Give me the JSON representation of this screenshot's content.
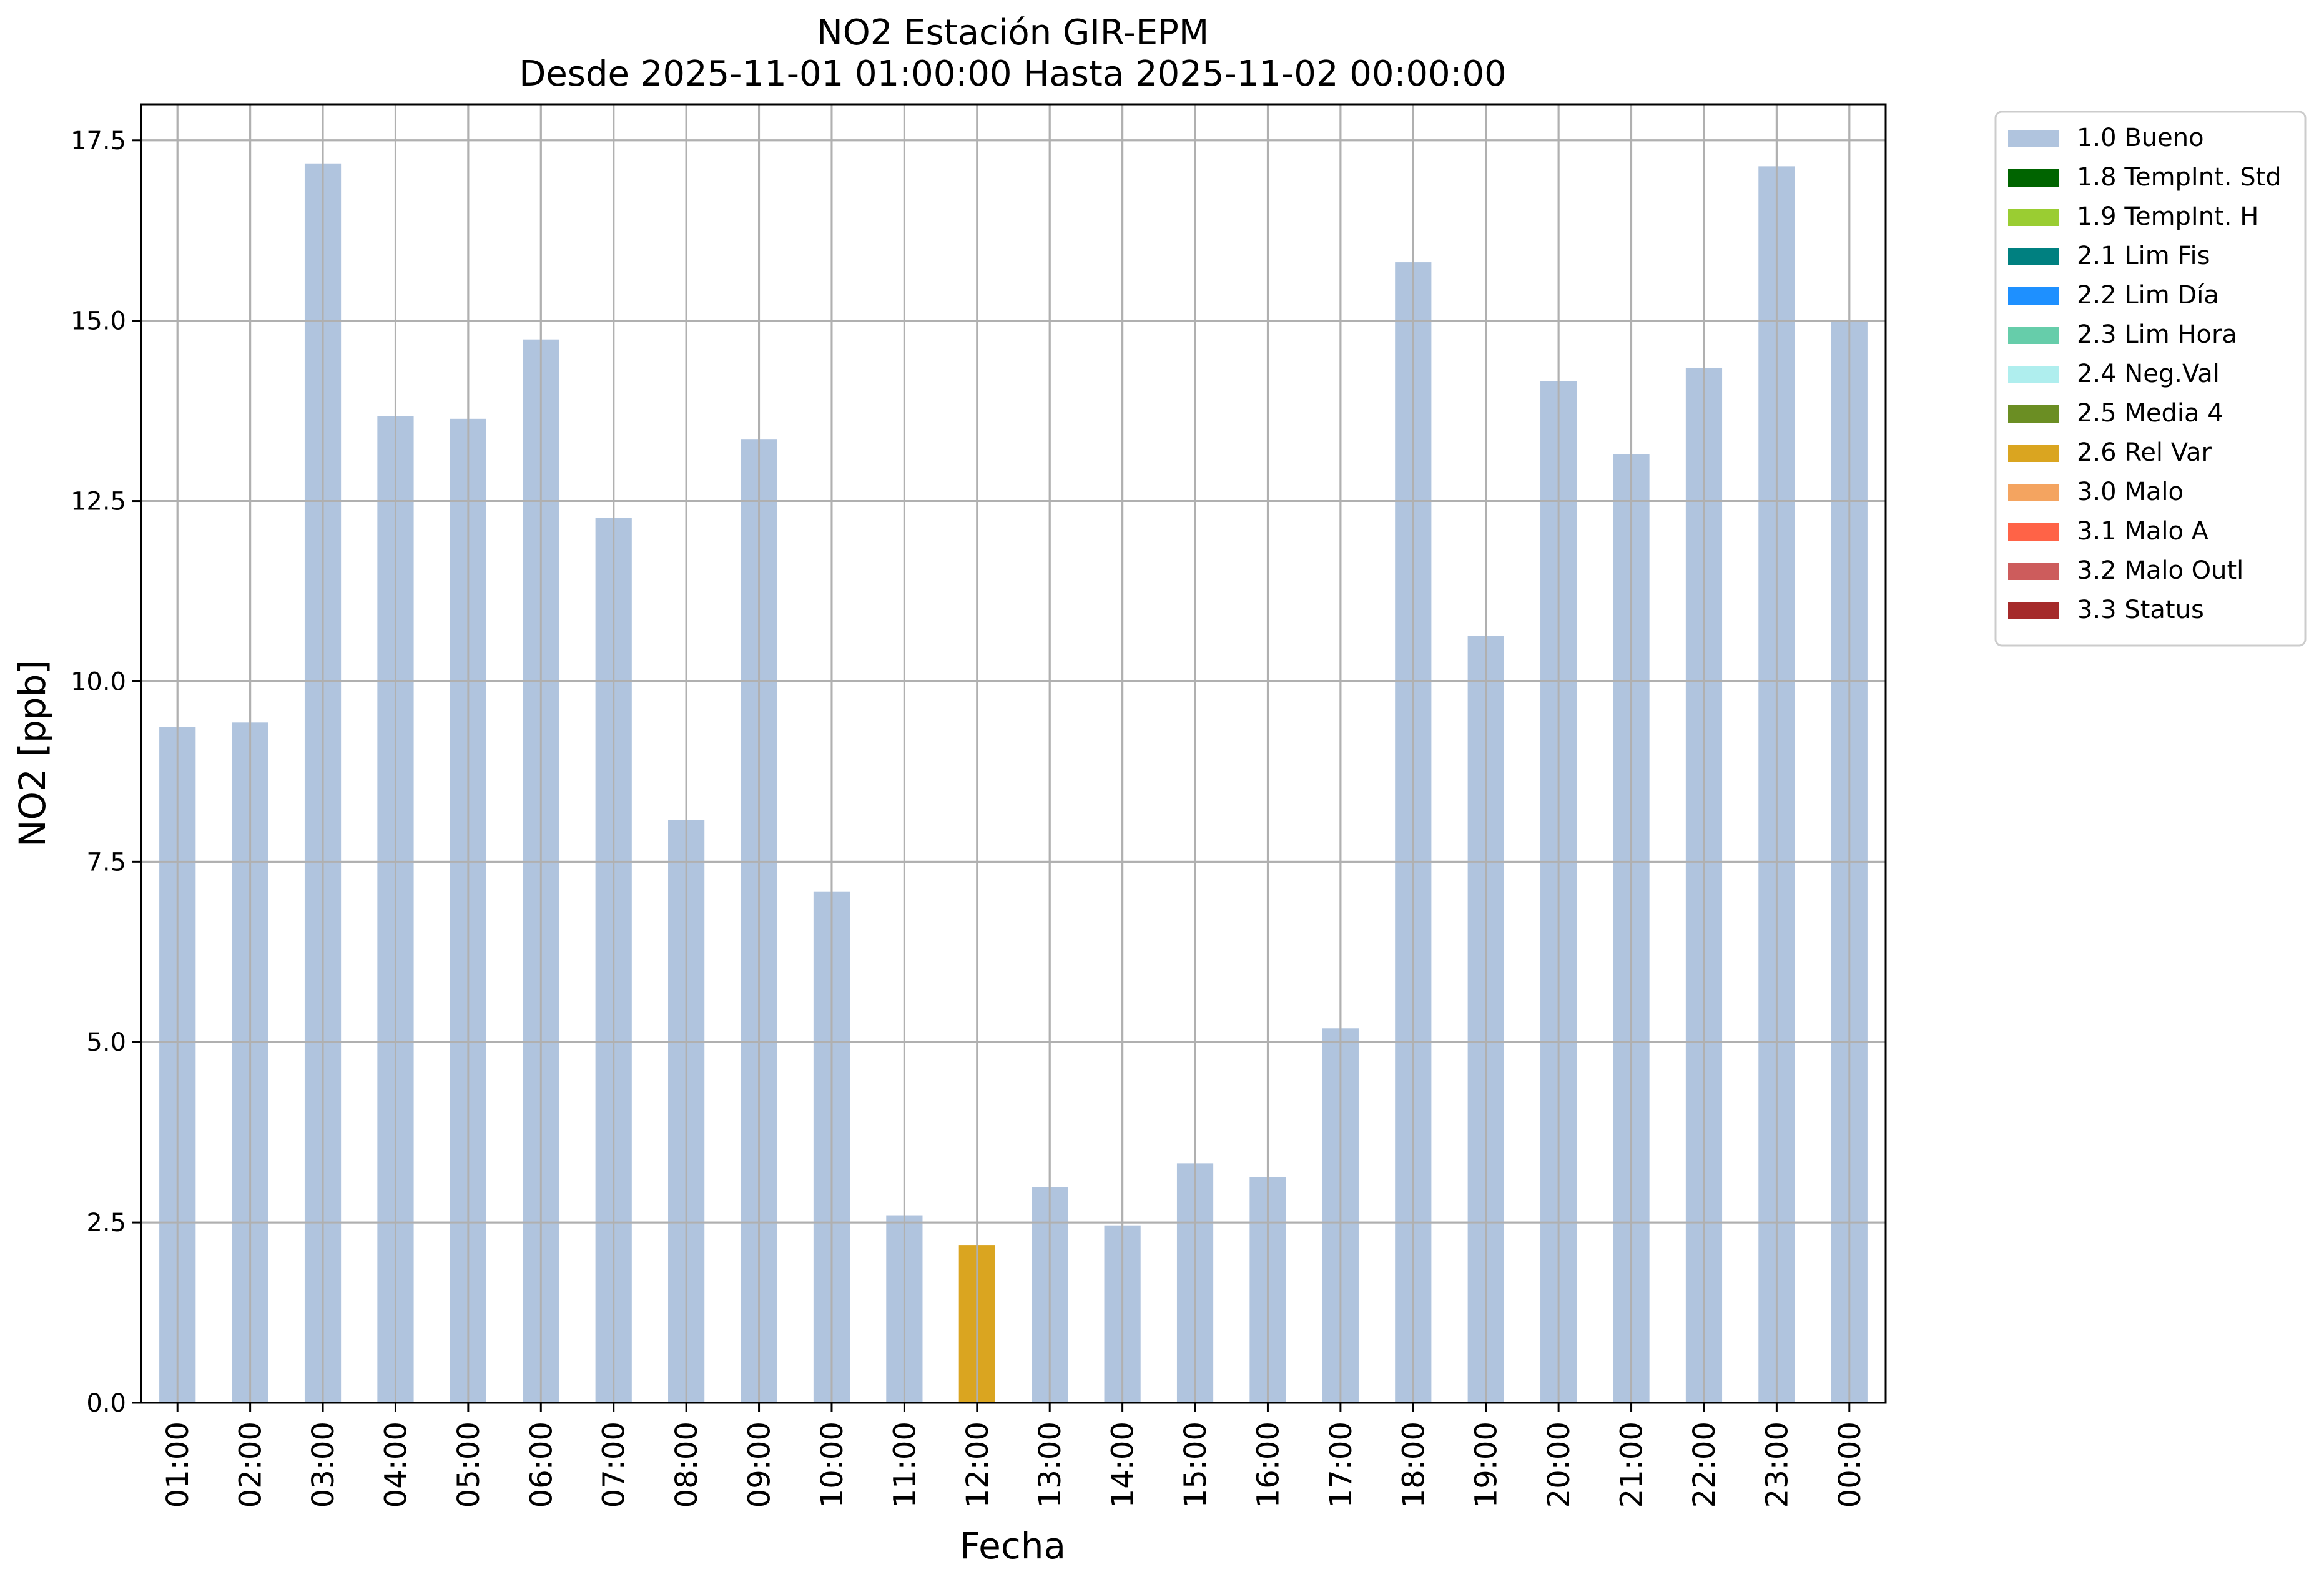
{
  "chart_data": {
    "type": "bar",
    "title": "NO2 Estación GIR-EPM",
    "subtitle": "Desde 2025-11-01 01:00:00 Hasta 2025-11-02 00:00:00",
    "xlabel": "Fecha",
    "ylabel": "NO2 [ppb]",
    "ylim": [
      0,
      18
    ],
    "yticks": [
      "0.0",
      "2.5",
      "5.0",
      "7.5",
      "10.0",
      "12.5",
      "15.0",
      "17.5"
    ],
    "grid": true,
    "legend_position": "outside upper right",
    "categories": [
      "01:00",
      "02:00",
      "03:00",
      "04:00",
      "05:00",
      "06:00",
      "07:00",
      "08:00",
      "09:00",
      "10:00",
      "11:00",
      "12:00",
      "13:00",
      "14:00",
      "15:00",
      "16:00",
      "17:00",
      "18:00",
      "19:00",
      "20:00",
      "21:00",
      "22:00",
      "23:00",
      "00:00"
    ],
    "values": [
      9.37,
      9.43,
      17.18,
      13.68,
      13.64,
      14.74,
      12.27,
      8.08,
      13.36,
      7.09,
      2.6,
      2.18,
      2.99,
      2.46,
      3.32,
      3.13,
      5.19,
      15.81,
      10.63,
      14.16,
      13.15,
      14.34,
      17.14,
      14.99
    ],
    "flags": [
      "1.0 Bueno",
      "1.0 Bueno",
      "1.0 Bueno",
      "1.0 Bueno",
      "1.0 Bueno",
      "1.0 Bueno",
      "1.0 Bueno",
      "1.0 Bueno",
      "1.0 Bueno",
      "1.0 Bueno",
      "1.0 Bueno",
      "2.6 Rel Var",
      "1.0 Bueno",
      "1.0 Bueno",
      "1.0 Bueno",
      "1.0 Bueno",
      "1.0 Bueno",
      "1.0 Bueno",
      "1.0 Bueno",
      "1.0 Bueno",
      "1.0 Bueno",
      "1.0 Bueno",
      "1.0 Bueno",
      "1.0 Bueno"
    ],
    "legend": [
      {
        "label": "1.0 Bueno",
        "color": "#b0c4de"
      },
      {
        "label": "1.8 TempInt. Std",
        "color": "#006400"
      },
      {
        "label": "1.9 TempInt. H",
        "color": "#9acd32"
      },
      {
        "label": "2.1 Lim Fis",
        "color": "#008080"
      },
      {
        "label": "2.2 Lim Día",
        "color": "#1e90ff"
      },
      {
        "label": "2.3 Lim Hora",
        "color": "#66cdaa"
      },
      {
        "label": "2.4 Neg.Val",
        "color": "#afeeee"
      },
      {
        "label": "2.5 Media 4",
        "color": "#6b8e23"
      },
      {
        "label": "2.6 Rel Var",
        "color": "#daa520"
      },
      {
        "label": "3.0 Malo",
        "color": "#f4a460"
      },
      {
        "label": "3.1 Malo A",
        "color": "#ff6347"
      },
      {
        "label": "3.2 Malo Outl",
        "color": "#cd5c5c"
      },
      {
        "label": "3.3 Status",
        "color": "#a52a2a"
      }
    ]
  }
}
